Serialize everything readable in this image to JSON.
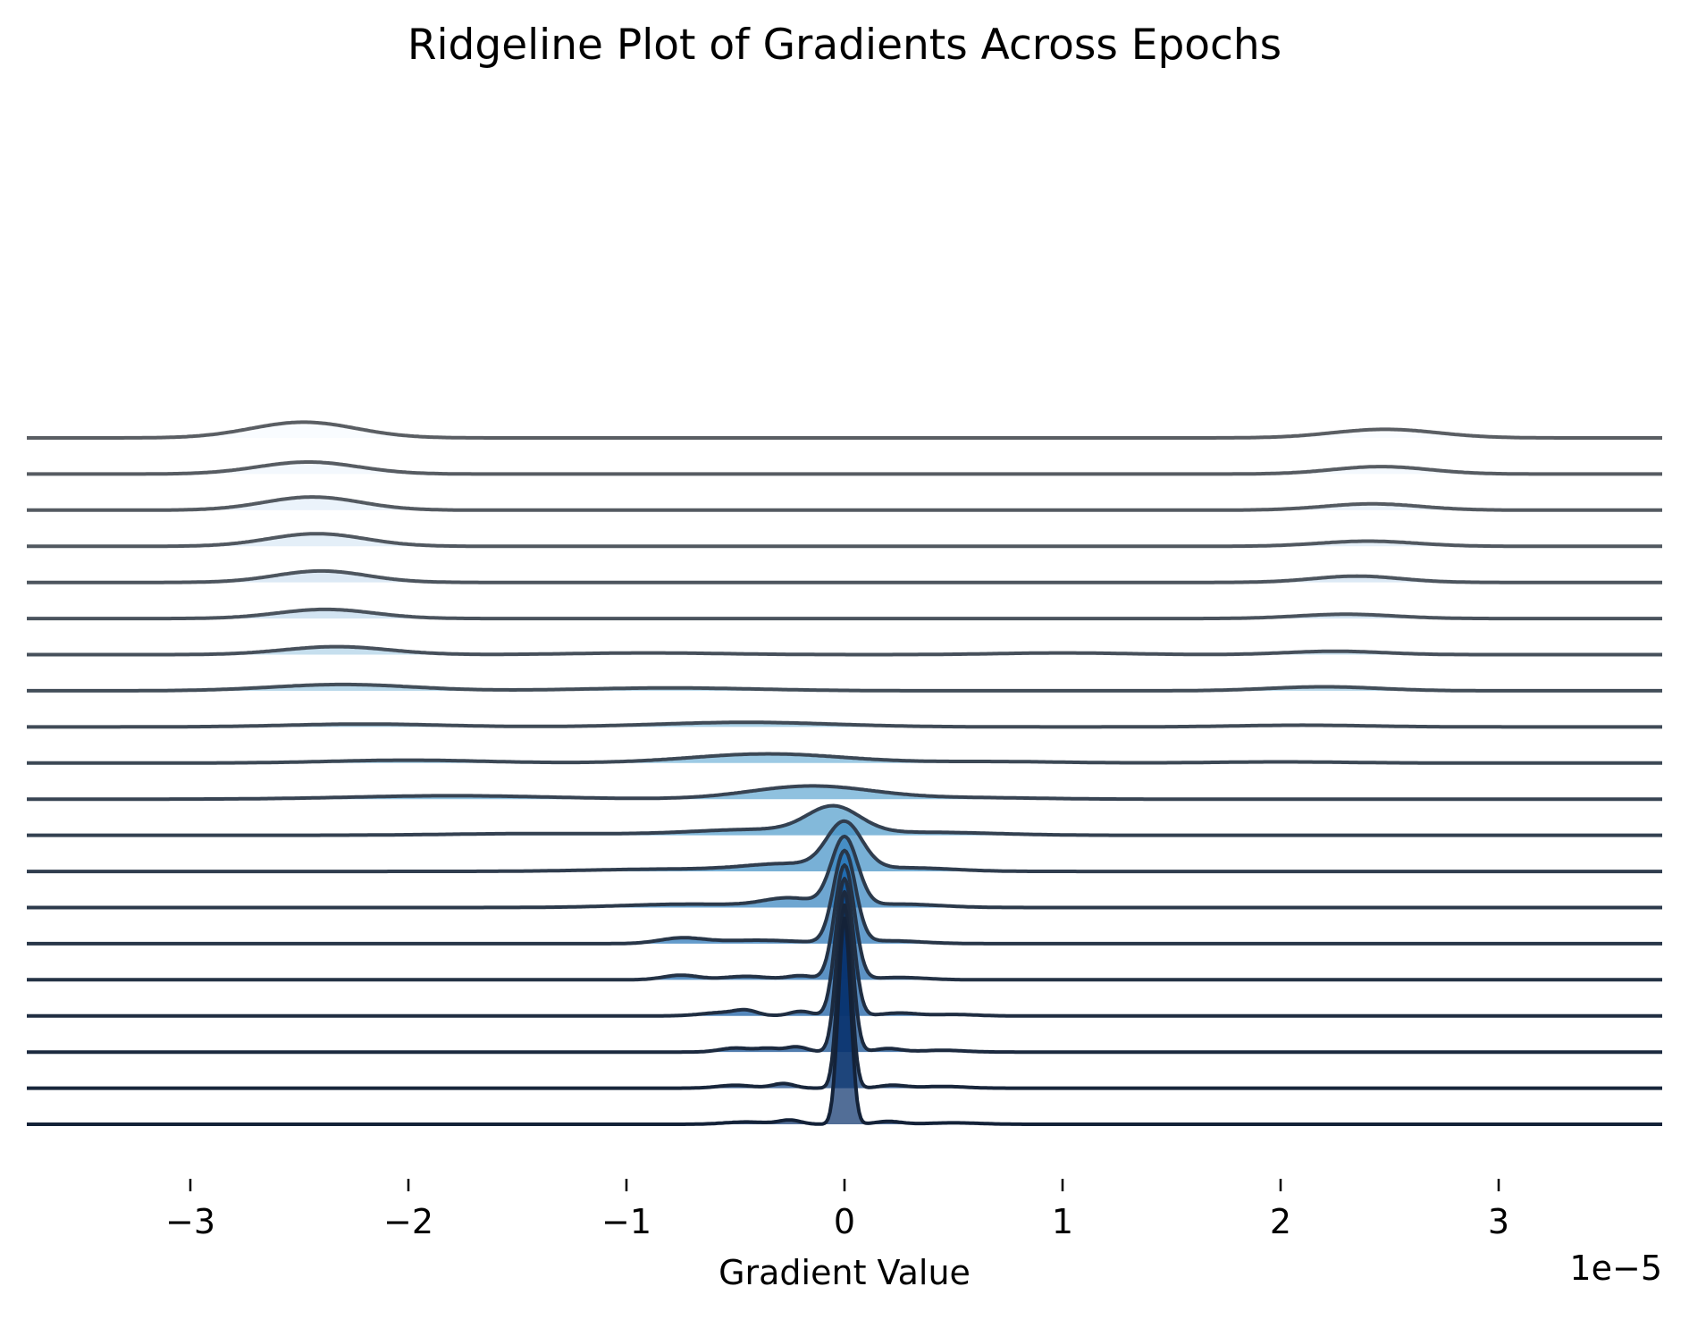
{
  "chart_data": {
    "type": "ridgeline",
    "title": "Ridgeline Plot of Gradients Across Epochs",
    "xlabel": "Gradient Value",
    "ylabel": "",
    "x_scale_offset": "1e−5",
    "xlim": [
      -3.75,
      3.75
    ],
    "x_ticks": [
      -3,
      -2,
      -1,
      0,
      1,
      2,
      3
    ],
    "x_tick_labels": [
      "−3",
      "−2",
      "−1",
      "0",
      "1",
      "2",
      "3"
    ],
    "grid": false,
    "legend": "none",
    "colormap": "Blues",
    "fill_colors": [
      "#f7fbff",
      "#eef5fc",
      "#e3eef9",
      "#d9e8f5",
      "#cde0f1",
      "#bfd8ed",
      "#aed1e7",
      "#9cc9e1",
      "#88bedc",
      "#73b3d8",
      "#60a7d2",
      "#4f9bcb",
      "#3e8ec4",
      "#3080bd",
      "#2272b6",
      "#1764ab",
      "#0d559f",
      "#08478d",
      "#083a7a",
      "#08306b"
    ],
    "line_colors": [
      "#5a5e63",
      "#575c62",
      "#545a61",
      "#515860",
      "#4d555e",
      "#4a535d",
      "#47505b",
      "#434e59",
      "#404b57",
      "#3c4855",
      "#384453",
      "#344151",
      "#303d4e",
      "#2c3a4b",
      "#283648",
      "#243245",
      "#202e42",
      "#1c2a3f",
      "#18263b",
      "#142238"
    ],
    "series_note": "20 ridges ordered top (first) to bottom (last); x in units of 1e-5",
    "series": [
      {
        "peaks": [
          [
            -2.48,
            0.55,
            0.24
          ],
          [
            2.48,
            0.3,
            0.24
          ]
        ]
      },
      {
        "peaks": [
          [
            -2.46,
            0.42,
            0.23
          ],
          [
            2.46,
            0.26,
            0.22
          ]
        ]
      },
      {
        "peaks": [
          [
            -2.44,
            0.46,
            0.22
          ],
          [
            2.42,
            0.22,
            0.22
          ]
        ]
      },
      {
        "peaks": [
          [
            -2.42,
            0.44,
            0.22
          ],
          [
            2.4,
            0.18,
            0.22
          ]
        ]
      },
      {
        "peaks": [
          [
            -2.4,
            0.4,
            0.21
          ],
          [
            2.35,
            0.22,
            0.2
          ]
        ]
      },
      {
        "peaks": [
          [
            -2.38,
            0.32,
            0.22
          ],
          [
            2.3,
            0.15,
            0.22
          ]
        ]
      },
      {
        "peaks": [
          [
            -2.33,
            0.28,
            0.24
          ],
          [
            -0.9,
            0.06,
            0.35
          ],
          [
            1.0,
            0.06,
            0.3
          ],
          [
            2.25,
            0.12,
            0.22
          ]
        ]
      },
      {
        "peaks": [
          [
            -2.3,
            0.22,
            0.32
          ],
          [
            -0.8,
            0.1,
            0.4
          ],
          [
            2.2,
            0.14,
            0.25
          ]
        ]
      },
      {
        "peaks": [
          [
            -2.2,
            0.1,
            0.35
          ],
          [
            -0.45,
            0.16,
            0.4
          ],
          [
            2.1,
            0.06,
            0.3
          ]
        ]
      },
      {
        "peaks": [
          [
            -2.0,
            0.1,
            0.35
          ],
          [
            -0.35,
            0.32,
            0.35
          ],
          [
            0.7,
            0.05,
            0.3
          ],
          [
            2.0,
            0.04,
            0.3
          ]
        ]
      },
      {
        "peaks": [
          [
            -1.8,
            0.12,
            0.45
          ],
          [
            -0.15,
            0.46,
            0.28
          ],
          [
            0.6,
            0.05,
            0.3
          ]
        ]
      },
      {
        "peaks": [
          [
            -1.4,
            0.06,
            0.4
          ],
          [
            -0.05,
            0.9,
            0.12
          ],
          [
            -0.4,
            0.2,
            0.3
          ],
          [
            0.4,
            0.1,
            0.3
          ]
        ]
      },
      {
        "peaks": [
          [
            -0.8,
            0.08,
            0.35
          ],
          [
            0.0,
            1.6,
            0.08
          ],
          [
            -0.25,
            0.25,
            0.2
          ],
          [
            0.3,
            0.12,
            0.2
          ]
        ]
      },
      {
        "peaks": [
          [
            -0.7,
            0.12,
            0.3
          ],
          [
            0.0,
            2.4,
            0.06
          ],
          [
            -0.25,
            0.3,
            0.12
          ],
          [
            0.25,
            0.12,
            0.18
          ]
        ]
      },
      {
        "peaks": [
          [
            -0.75,
            0.18,
            0.1
          ],
          [
            -0.4,
            0.12,
            0.2
          ],
          [
            0.0,
            3.2,
            0.05
          ],
          [
            0.2,
            0.1,
            0.15
          ]
        ]
      },
      {
        "peaks": [
          [
            -0.75,
            0.16,
            0.08
          ],
          [
            -0.45,
            0.12,
            0.1
          ],
          [
            -0.2,
            0.14,
            0.06
          ],
          [
            0.0,
            4.0,
            0.045
          ],
          [
            0.25,
            0.08,
            0.12
          ]
        ]
      },
      {
        "peaks": [
          [
            -0.55,
            0.12,
            0.1
          ],
          [
            -0.45,
            0.14,
            0.05
          ],
          [
            -0.2,
            0.16,
            0.05
          ],
          [
            0.0,
            4.8,
            0.04
          ],
          [
            0.25,
            0.1,
            0.08
          ],
          [
            0.5,
            0.05,
            0.1
          ]
        ]
      },
      {
        "peaks": [
          [
            -0.5,
            0.14,
            0.07
          ],
          [
            -0.35,
            0.12,
            0.05
          ],
          [
            -0.22,
            0.18,
            0.05
          ],
          [
            0.0,
            5.6,
            0.035
          ],
          [
            0.2,
            0.12,
            0.06
          ],
          [
            0.45,
            0.06,
            0.1
          ]
        ]
      },
      {
        "peaks": [
          [
            -0.5,
            0.1,
            0.08
          ],
          [
            -0.28,
            0.16,
            0.05
          ],
          [
            0.0,
            6.4,
            0.03
          ],
          [
            0.22,
            0.1,
            0.06
          ],
          [
            0.45,
            0.06,
            0.1
          ]
        ]
      },
      {
        "peaks": [
          [
            -0.45,
            0.08,
            0.1
          ],
          [
            -0.25,
            0.14,
            0.05
          ],
          [
            0.0,
            7.2,
            0.028
          ],
          [
            0.2,
            0.1,
            0.06
          ],
          [
            0.5,
            0.05,
            0.12
          ]
        ]
      }
    ]
  }
}
